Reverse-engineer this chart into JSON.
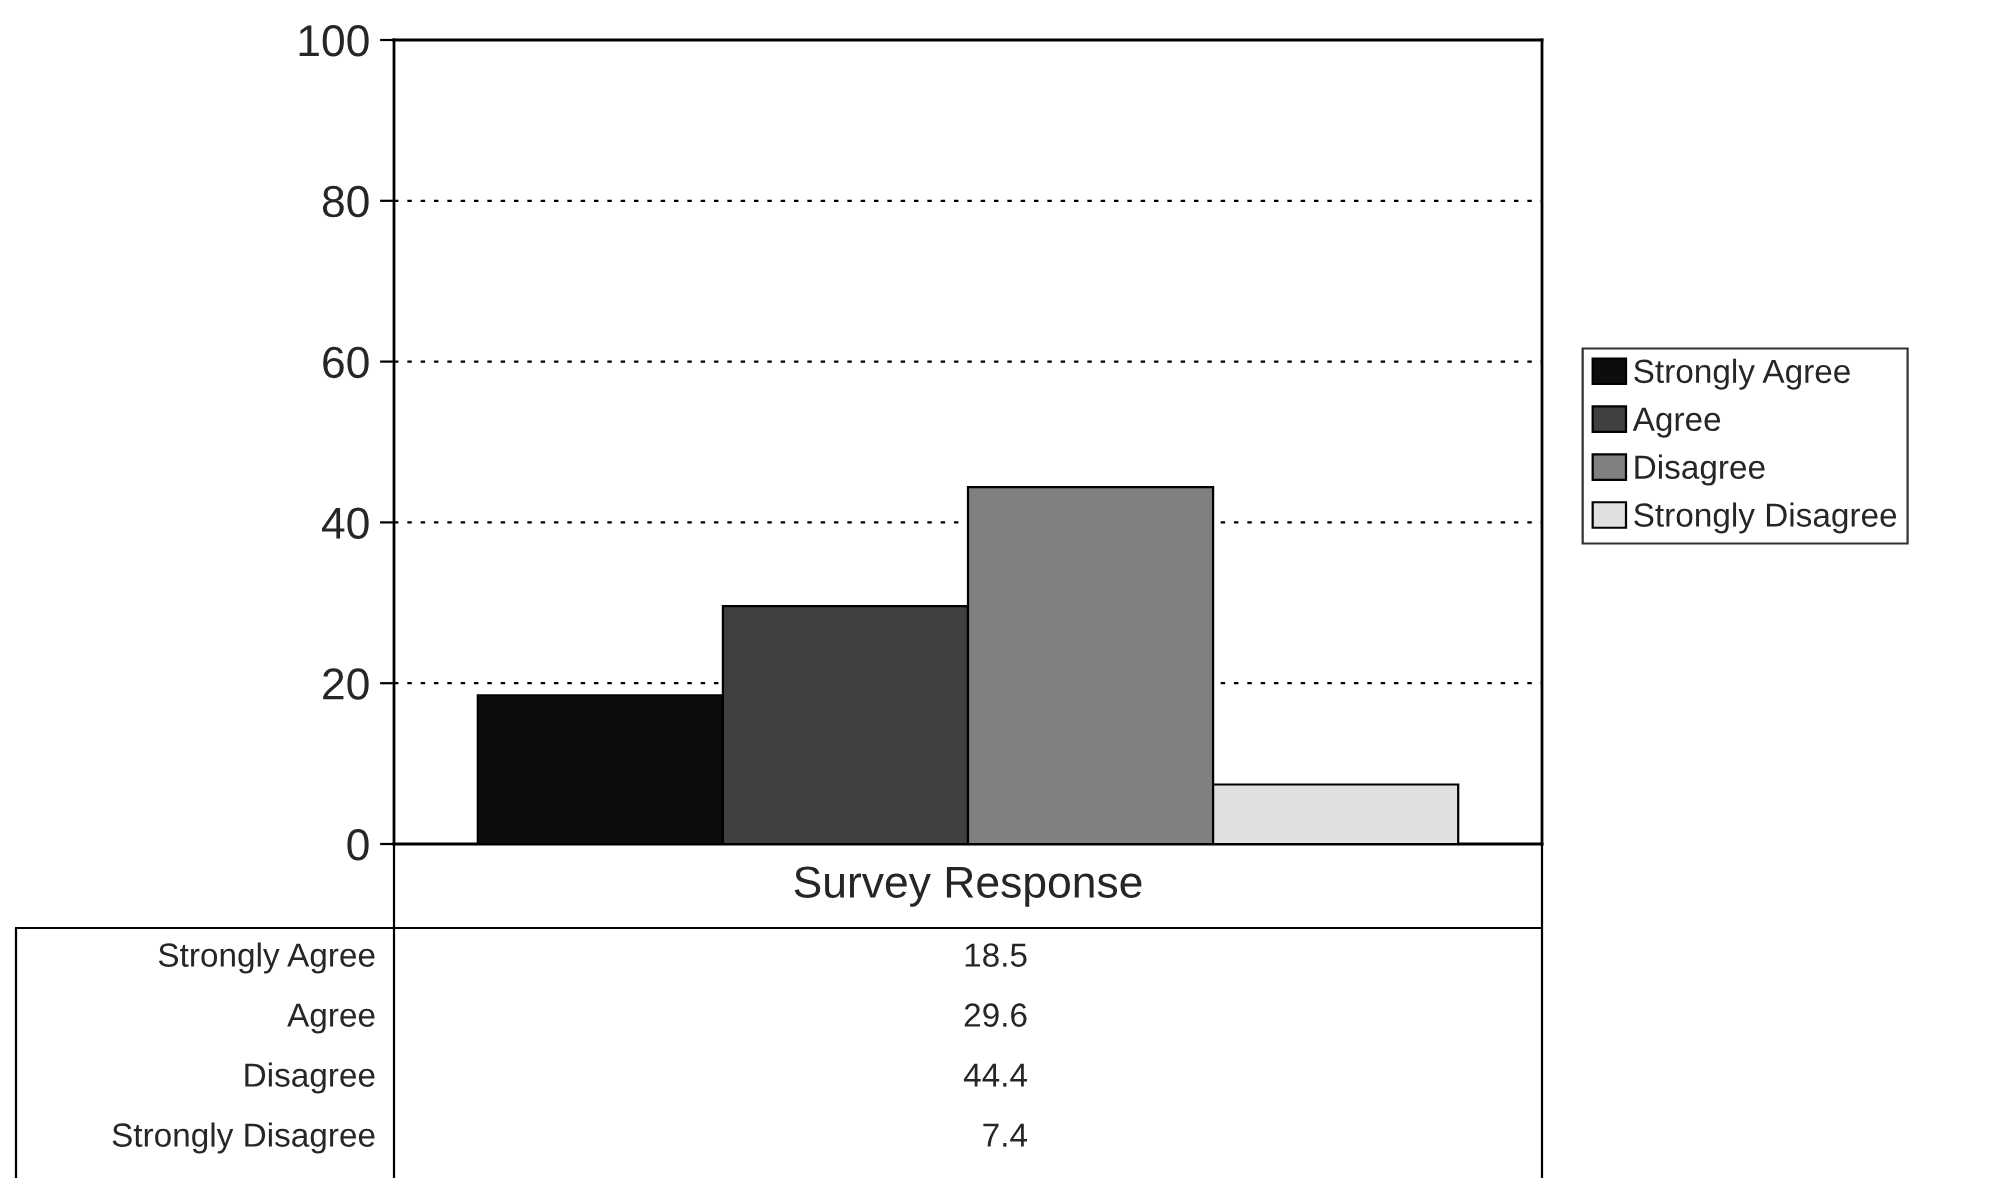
{
  "chart_data": {
    "type": "bar",
    "categories": [
      "Survey Response"
    ],
    "series": [
      {
        "name": "Strongly Agree",
        "color": "#0d0d0d",
        "values": [
          18.5
        ]
      },
      {
        "name": "Agree",
        "color": "#404040",
        "values": [
          29.6
        ]
      },
      {
        "name": "Disagree",
        "color": "#808080",
        "values": [
          44.4
        ]
      },
      {
        "name": "Strongly Disagree",
        "color": "#e0e0e0",
        "values": [
          7.4
        ]
      }
    ],
    "ylim": [
      0,
      100
    ],
    "yticks": [
      0,
      20,
      40,
      60,
      80,
      100
    ],
    "grid": "y",
    "legend": "right",
    "annotations": [
      "18.5",
      "29.6",
      "44.4",
      "7.4"
    ]
  }
}
